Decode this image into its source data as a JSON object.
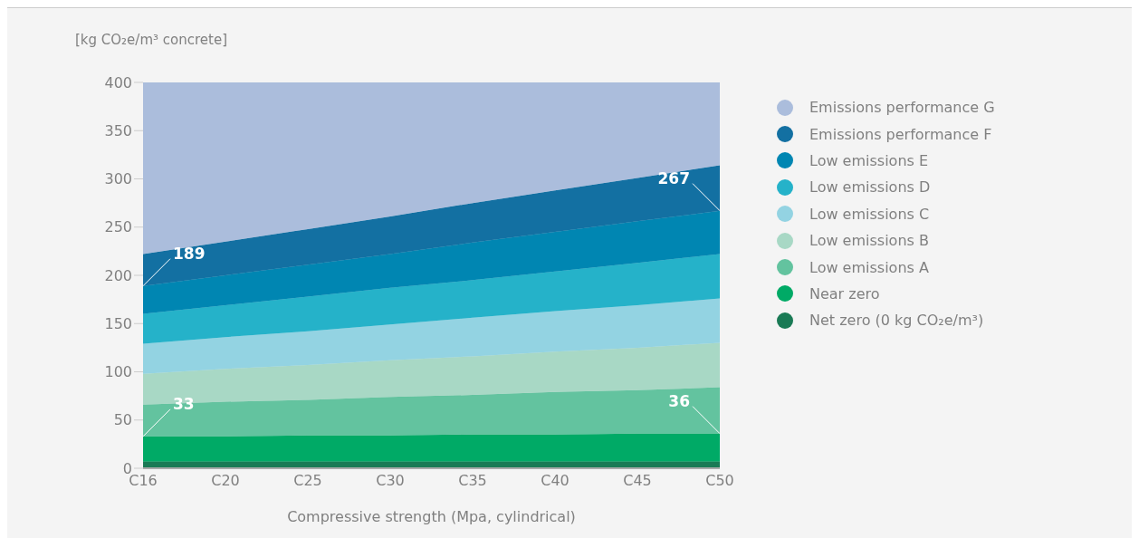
{
  "chart_data": {
    "type": "area",
    "stacked": true,
    "ylabel": "[kg CO₂e/m³ concrete]",
    "xlabel": "Compressive strength (Mpa, cylindrical)",
    "categories": [
      "C16",
      "C20",
      "C25",
      "C30",
      "C35",
      "C40",
      "C45",
      "C50"
    ],
    "series": [
      {
        "name": "Net zero (0 kg CO₂e/m³)",
        "color": "#1a7a55",
        "values": [
          7,
          7,
          7,
          7,
          7,
          7,
          7,
          7
        ]
      },
      {
        "name": "Near zero",
        "color": "#00aa66",
        "values": [
          26,
          26,
          27,
          27,
          28,
          28,
          29,
          29
        ]
      },
      {
        "name": "Low emissions A",
        "color": "#63c39f",
        "values": [
          33,
          36,
          37,
          40,
          41,
          44,
          45,
          48
        ]
      },
      {
        "name": "Low emissions B",
        "color": "#a8d8c5",
        "values": [
          32,
          34,
          36,
          38,
          40,
          42,
          44,
          46
        ]
      },
      {
        "name": "Low emissions C",
        "color": "#93d3e2",
        "values": [
          31,
          33,
          35,
          37,
          40,
          42,
          44,
          46
        ]
      },
      {
        "name": "Low emissions D",
        "color": "#25b2c9",
        "values": [
          31,
          33,
          36,
          38,
          39,
          41,
          44,
          46
        ]
      },
      {
        "name": "Low emissions E",
        "color": "#0086b2",
        "values": [
          29,
          31,
          33,
          35,
          39,
          41,
          43,
          45
        ]
      },
      {
        "name": "Emissions performance F",
        "color": "#1370a2",
        "values": [
          33,
          35,
          37,
          39,
          41,
          43,
          45,
          47
        ]
      },
      {
        "name": "Emissions performance G",
        "color": "#abbddc",
        "values": [
          178,
          165,
          152,
          139,
          125,
          112,
          99,
          86
        ]
      }
    ],
    "ylim": [
      0,
      400
    ],
    "yticks": [
      0,
      50,
      100,
      150,
      200,
      250,
      300,
      350,
      400
    ],
    "grid": false,
    "legend": "right",
    "annotations": [
      {
        "text": "189",
        "x": "C16",
        "y": 189
      },
      {
        "text": "33",
        "x": "C16",
        "y": 33
      },
      {
        "text": "267",
        "x": "C50",
        "y": 267
      },
      {
        "text": "36",
        "x": "C50",
        "y": 36
      }
    ]
  }
}
